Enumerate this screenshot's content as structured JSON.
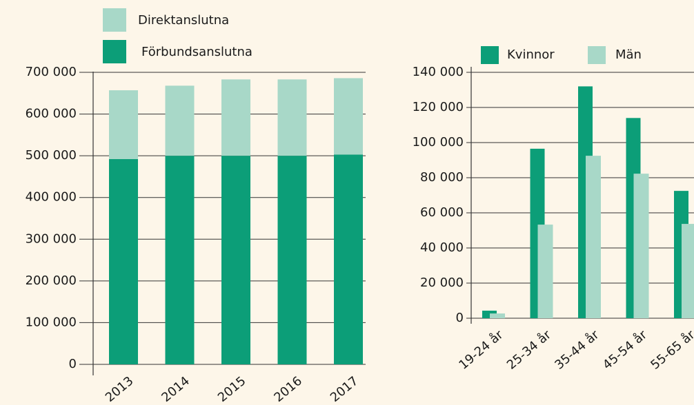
{
  "chart_data": [
    {
      "type": "stacked-bar",
      "categories": [
        "2013",
        "2014",
        "2015",
        "2016",
        "2017"
      ],
      "series": [
        {
          "name": "Förbundsanslutna",
          "color": "#0c9e78",
          "values": [
            492000,
            500000,
            500000,
            500000,
            503000
          ]
        },
        {
          "name": "Direktanslutna",
          "color": "#a8d8c8",
          "values": [
            165000,
            168000,
            183000,
            183000,
            183000
          ]
        }
      ],
      "ylim": [
        0,
        700000
      ],
      "yticks": [
        0,
        {
          "value": 100000,
          "label": "100 000"
        },
        {
          "value": 200000,
          "label": "200 000"
        },
        {
          "value": 300000,
          "label": "300 000"
        },
        {
          "value": 400000,
          "label": "400 000"
        },
        {
          "value": 500000,
          "label": "500 000"
        },
        {
          "value": 600000,
          "label": "600 000"
        },
        {
          "value": 700000,
          "label": "700 000"
        }
      ],
      "grid": true
    },
    {
      "type": "overlapped-bar",
      "categories": [
        "19-24 år",
        "25-34 år",
        "35-44 år",
        "45-54 år",
        "55-65 år"
      ],
      "series": [
        {
          "name": "Kvinnor",
          "color": "#0c9e78",
          "values": [
            4300,
            96500,
            132000,
            114000,
            72500
          ]
        },
        {
          "name": "Män",
          "color": "#a8d8c8",
          "values": [
            2700,
            53300,
            92500,
            82300,
            53700
          ]
        }
      ],
      "ylim": [
        0,
        140000
      ],
      "yticks": [
        0,
        {
          "value": 20000,
          "label": "20 000"
        },
        {
          "value": 40000,
          "label": "40 000"
        },
        {
          "value": 60000,
          "label": "60 000"
        },
        {
          "value": 80000,
          "label": "80 000"
        },
        {
          "value": 100000,
          "label": "100 000"
        },
        {
          "value": 120000,
          "label": "120 000"
        },
        {
          "value": 140000,
          "label": "140 000"
        }
      ],
      "grid": true
    }
  ]
}
